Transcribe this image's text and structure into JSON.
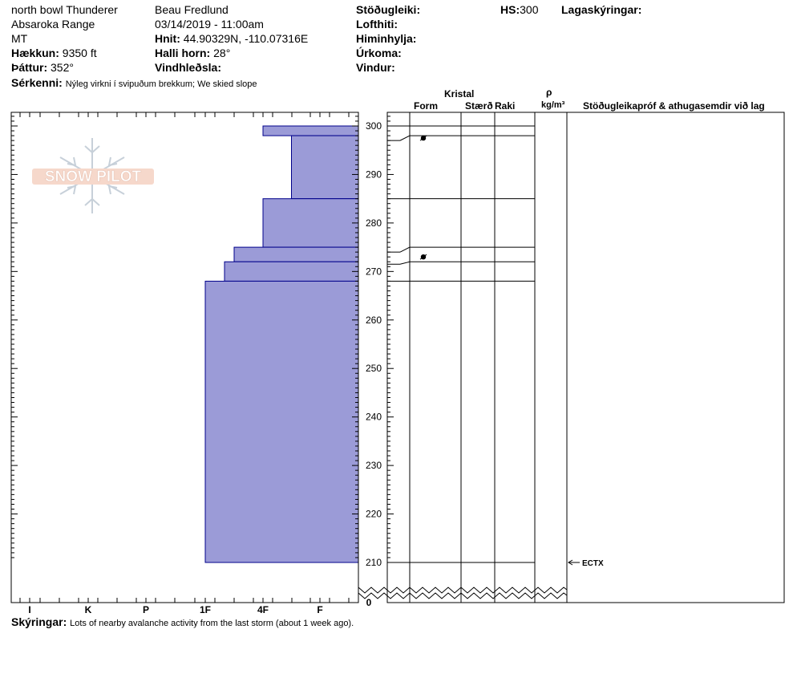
{
  "header": {
    "location": "north bowl Thunderer",
    "range": "Absaroka Range",
    "state": "MT",
    "elevation_label": "Hækkun:",
    "elevation_value": "9350 ft",
    "aspect_label": "Þáttur:",
    "aspect_value": "352°",
    "observer": "Beau  Fredlund",
    "datetime": "03/14/2019 - 11:00am",
    "coords_label": "Hnit:",
    "coords_value": "44.90329N, -110.07316E",
    "slope_label": "Halli horn:",
    "slope_value": "28°",
    "wind_loading_label": "Vindhleðsla:",
    "stability_label": "Stöðugleiki:",
    "air_temp_label": "Lofthiti:",
    "sky_label": "Himinhylja:",
    "precip_label": "Úrkoma:",
    "wind_label": "Vindur:",
    "hs_label": "HS:",
    "hs_value": "300",
    "layer_notes_label": "Lagaskýringar:",
    "features_label": "Sérkenni:",
    "features_value": "Nýleg virkni í svipuðum brekkum; We skied slope"
  },
  "logo_text": "SNOW PILOT",
  "columns": {
    "crystal": "Kristal",
    "form": "Form",
    "size": "Stærð",
    "moisture": "Raki",
    "rho": "ρ",
    "density_unit": "kg/m³",
    "tests": "Stöðugleikapróf & athugasemdir við lag"
  },
  "footer": {
    "notes_label": "Skýringar:",
    "notes_value": "Lots of nearby avalanche activity from the last storm (about 1 week ago)."
  },
  "chart_data": {
    "type": "bar",
    "description_axis_y": "height (cm)",
    "y_ticks": [
      300,
      290,
      280,
      270,
      260,
      250,
      240,
      230,
      220,
      210
    ],
    "y_break_label": "0",
    "ylim": [
      210,
      300
    ],
    "hardness_ticks": [
      "I",
      "K",
      "P",
      "1F",
      "4F",
      "F"
    ],
    "colors": {
      "bar_fill": "#9b9bd7",
      "bar_stroke": "#00008b"
    },
    "layers": [
      {
        "top": 300,
        "bottom": 298,
        "hardness": "4F"
      },
      {
        "top": 298,
        "bottom": 285,
        "hardness": "4F-F"
      },
      {
        "top": 285,
        "bottom": 275,
        "hardness": "4F"
      },
      {
        "top": 275,
        "bottom": 272,
        "hardness": "1F-4F"
      },
      {
        "top": 272,
        "bottom": 268,
        "hardness": "1F+"
      },
      {
        "top": 268,
        "bottom": 210,
        "hardness": "1F"
      }
    ],
    "grain_marks": [
      297.5,
      273
    ],
    "tests": [
      {
        "height": 210,
        "label": "ECTX"
      }
    ]
  }
}
